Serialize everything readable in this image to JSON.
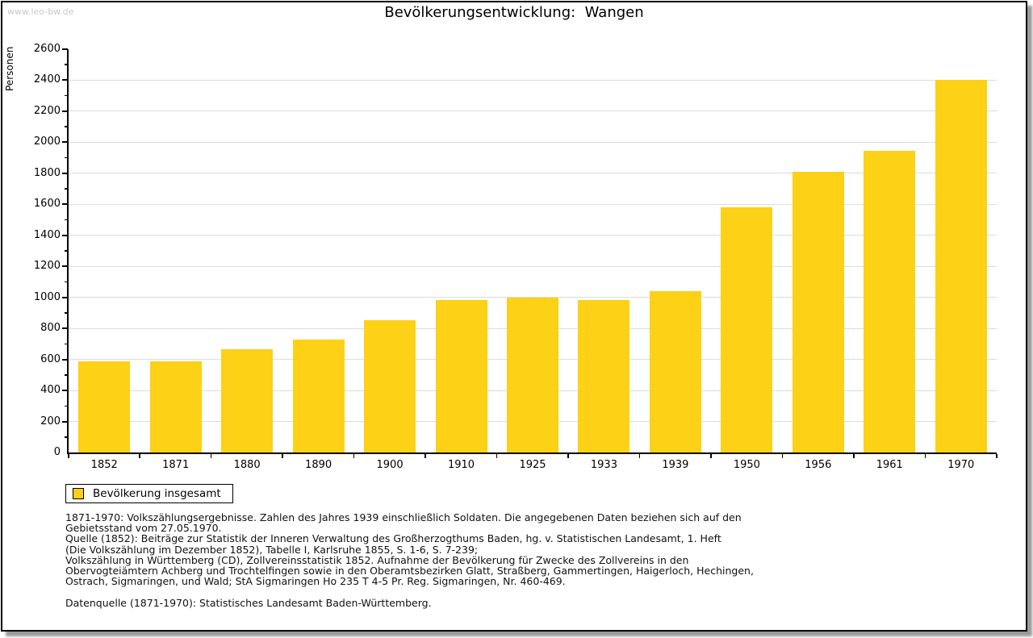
{
  "page": {
    "watermark": "www.leo-bw.de",
    "title": "Bevölkerungsentwicklung:  Wangen"
  },
  "chart_data": {
    "type": "bar",
    "title": "Bevölkerungsentwicklung:  Wangen",
    "xlabel": "",
    "ylabel": "Personen",
    "categories": [
      "1852",
      "1871",
      "1880",
      "1890",
      "1900",
      "1910",
      "1925",
      "1933",
      "1939",
      "1950",
      "1956",
      "1961",
      "1970"
    ],
    "series": [
      {
        "name": "Bevölkerung insgesamt",
        "values": [
          590,
          590,
          665,
          730,
          855,
          985,
          1000,
          985,
          1040,
          1580,
          1810,
          1945,
          2405
        ]
      }
    ],
    "ylim": [
      0,
      2600
    ],
    "ytick_major": 200,
    "ytick_minor": 100,
    "grid": true,
    "legend_position": "bottom-left",
    "bar_color": "#FCD116",
    "gridline_color": "#dcdcdc"
  },
  "footnotes": {
    "lines": [
      "1871-1970: Volkszählungsergebnisse. Zahlen des Jahres 1939 einschließlich Soldaten. Die angegebenen Daten beziehen sich auf den",
      "Gebietsstand vom 27.05.1970.",
      "Quelle (1852): Beiträge zur Statistik der Inneren Verwaltung des Großherzogthums Baden, hg. v. Statistischen Landesamt, 1. Heft",
      "(Die Volkszählung im Dezember 1852), Tabelle I, Karlsruhe 1855, S. 1-6, S. 7-239;",
      "Volkszählung in Württemberg (CD), Zollvereinsstatistik 1852. Aufnahme der Bevölkerung für Zwecke des Zollvereins in den",
      "Obervogteiämtern Achberg und Trochtelfingen sowie in den Oberamtsbezirken Glatt, Straßberg, Gammertingen, Haigerloch, Hechingen,",
      "Ostrach, Sigmaringen, und Wald; StA Sigmaringen Ho 235 T 4-5 Pr. Reg. Sigmaringen, Nr. 460-469."
    ],
    "datasource": "Datenquelle (1871-1970): Statistisches Landesamt Baden-Württemberg."
  }
}
